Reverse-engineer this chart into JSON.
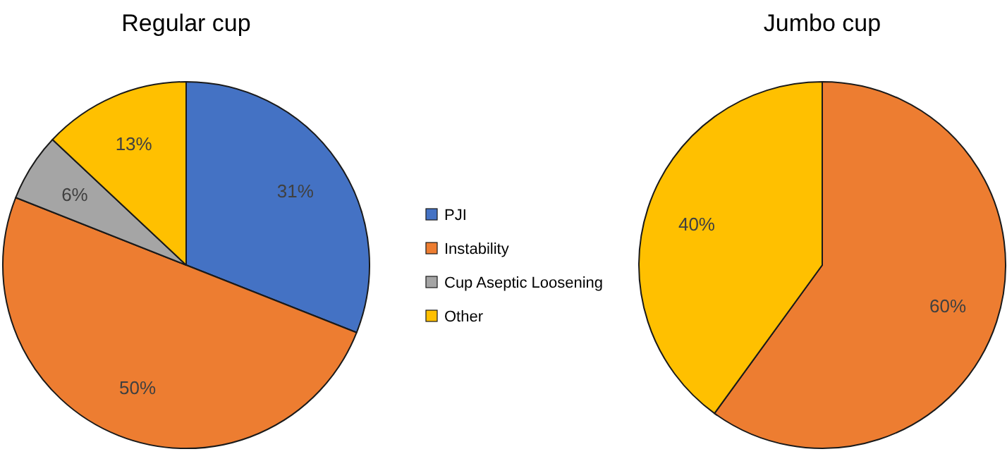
{
  "chart_data": [
    {
      "type": "pie",
      "title": "Regular cup",
      "categories": [
        "PJI",
        "Instability",
        "Cup Aseptic Loosening",
        "Other"
      ],
      "values": [
        31,
        50,
        6,
        13
      ],
      "value_labels": [
        "31%",
        "50%",
        "6%",
        "13%"
      ],
      "colors": [
        "#4472c4",
        "#ed7d31",
        "#a5a5a5",
        "#ffc000"
      ],
      "data_labels": true,
      "legend": "right"
    },
    {
      "type": "pie",
      "title": "Jumbo cup",
      "categories": [
        null,
        null
      ],
      "values": [
        60,
        40
      ],
      "value_labels": [
        "60%",
        "40%"
      ],
      "colors": [
        "#ed7d31",
        "#ffc000"
      ],
      "data_labels": true,
      "legend": false
    }
  ]
}
